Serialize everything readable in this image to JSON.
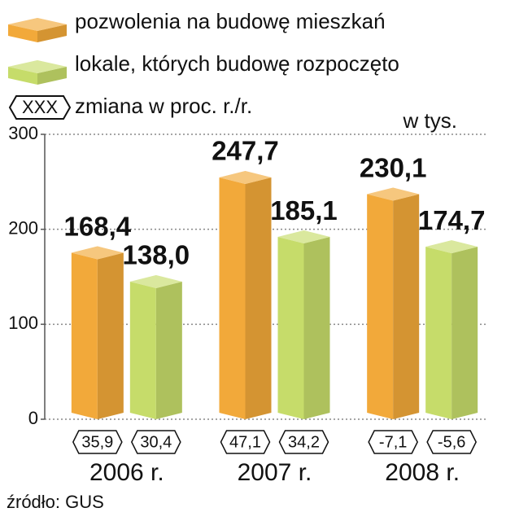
{
  "chart_data": {
    "type": "bar3d",
    "unit_label": "w tys.",
    "change_legend": {
      "symbol": "XXX",
      "label": "zmiana w proc. r./r."
    },
    "categories": [
      "2006 r.",
      "2007 r.",
      "2008 r."
    ],
    "series": [
      {
        "name": "pozwolenia na budowę mieszkań",
        "color": "#f2a93a",
        "values": [
          168.4,
          247.7,
          230.1
        ],
        "value_labels": [
          "168,4",
          "247,7",
          "230,1"
        ],
        "change_values": [
          35.9,
          47.1,
          -7.1
        ],
        "change_labels": [
          "35,9",
          "47,1",
          "-7,1"
        ]
      },
      {
        "name": "lokale, których budowę rozpoczęto",
        "color": "#c6dc6a",
        "values": [
          138.0,
          185.1,
          174.7
        ],
        "value_labels": [
          "138,0",
          "185,1",
          "174,7"
        ],
        "change_values": [
          30.4,
          34.2,
          -5.6
        ],
        "change_labels": [
          "30,4",
          "34,2",
          "-5,6"
        ]
      }
    ],
    "ylim": [
      0,
      300
    ],
    "yticks": [
      0,
      100,
      200,
      300
    ],
    "grid": true,
    "source": "źródło: GUS"
  }
}
